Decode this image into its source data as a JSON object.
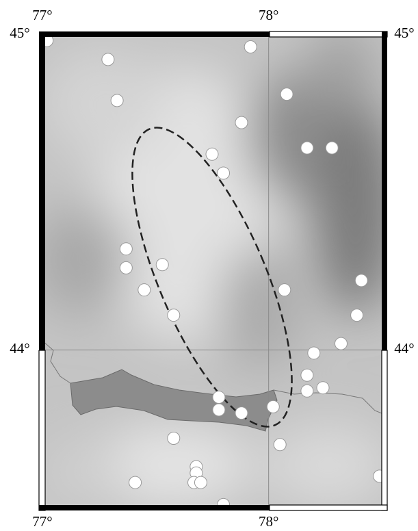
{
  "chart_data": {
    "type": "map",
    "xlim": [
      77,
      78.5
    ],
    "ylim": [
      43.5,
      45
    ],
    "xticks": [
      {
        "value": 77,
        "label": "77°"
      },
      {
        "value": 78,
        "label": "78°"
      }
    ],
    "yticks": [
      {
        "value": 44,
        "label": "44°"
      },
      {
        "value": 45,
        "label": "45°"
      }
    ],
    "grid": true,
    "color": "#ffffff",
    "x": [
      77.02,
      77.29,
      77.92,
      77.33,
      78.08,
      77.88,
      77.75,
      78.17,
      78.28,
      77.8,
      77.37,
      77.37,
      77.53,
      77.45,
      78.07,
      78.41,
      77.58,
      78.39,
      78.32,
      78.2,
      78.17,
      78.17,
      78.24,
      77.78,
      77.78,
      77.88,
      78.02,
      77.58,
      78.05,
      77.68,
      77.68,
      77.67,
      77.7,
      77.41,
      78.49,
      77.8
    ],
    "values": [
      44.98,
      44.92,
      44.96,
      44.79,
      44.81,
      44.72,
      44.62,
      44.64,
      44.64,
      44.56,
      44.32,
      44.26,
      44.27,
      44.19,
      44.19,
      44.22,
      44.11,
      44.11,
      44.02,
      43.99,
      43.92,
      43.87,
      43.88,
      43.85,
      43.81,
      43.8,
      43.82,
      43.72,
      43.7,
      43.63,
      43.61,
      43.58,
      43.58,
      43.58,
      43.6,
      43.51
    ]
  }
}
